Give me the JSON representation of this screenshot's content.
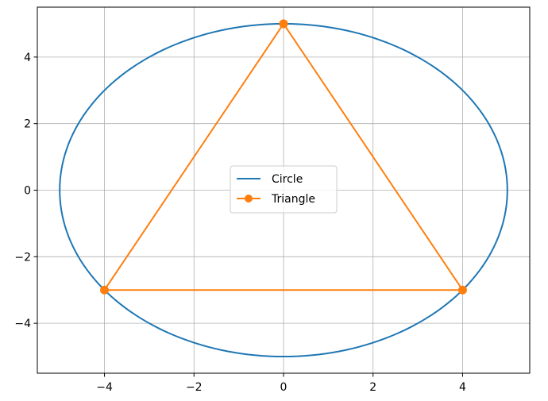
{
  "chart_data": {
    "type": "line",
    "title": "",
    "xlabel": "",
    "ylabel": "",
    "xlim": [
      -5.5,
      5.5
    ],
    "ylim": [
      -5.5,
      5.5
    ],
    "x_ticks": [
      -4,
      -2,
      0,
      2,
      4
    ],
    "y_ticks": [
      -4,
      -2,
      0,
      2,
      4
    ],
    "x_tick_labels": [
      "−4",
      "−2",
      "0",
      "2",
      "4"
    ],
    "y_tick_labels": [
      "−4",
      "−2",
      "0",
      "2",
      "4"
    ],
    "grid": true,
    "legend_position": "center",
    "series": [
      {
        "name": "Circle",
        "kind": "circle",
        "center": [
          0,
          0
        ],
        "radius": 5,
        "color": "#1f77b4",
        "marker": "none"
      },
      {
        "name": "Triangle",
        "kind": "polyline",
        "x": [
          0,
          4,
          -4,
          0
        ],
        "y": [
          5,
          -3,
          -3,
          5
        ],
        "color": "#ff7f0e",
        "marker": "circle"
      }
    ]
  }
}
